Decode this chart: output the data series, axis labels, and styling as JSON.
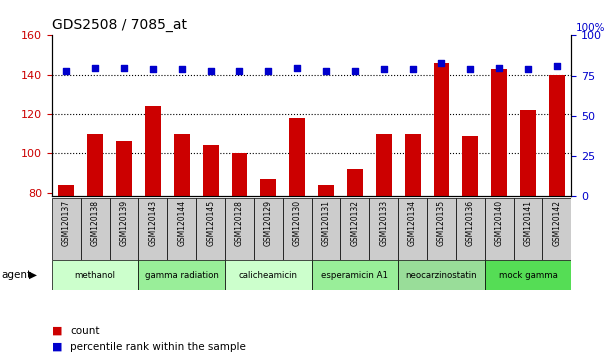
{
  "title": "GDS2508 / 7085_at",
  "samples": [
    "GSM120137",
    "GSM120138",
    "GSM120139",
    "GSM120143",
    "GSM120144",
    "GSM120145",
    "GSM120128",
    "GSM120129",
    "GSM120130",
    "GSM120131",
    "GSM120132",
    "GSM120133",
    "GSM120134",
    "GSM120135",
    "GSM120136",
    "GSM120140",
    "GSM120141",
    "GSM120142"
  ],
  "bar_values": [
    84,
    110,
    106,
    124,
    110,
    104,
    100,
    87,
    118,
    84,
    92,
    110,
    110,
    146,
    109,
    143,
    122,
    140
  ],
  "percentile_values": [
    78,
    80,
    80,
    79,
    79,
    78,
    78,
    78,
    80,
    78,
    78,
    79,
    79,
    83,
    79,
    80,
    79,
    81
  ],
  "bar_color": "#cc0000",
  "dot_color": "#0000cc",
  "ylim_left": [
    78,
    160
  ],
  "ylim_right": [
    0,
    100
  ],
  "yticks_left": [
    80,
    100,
    120,
    140,
    160
  ],
  "yticks_right": [
    0,
    25,
    50,
    75,
    100
  ],
  "agent_groups": [
    {
      "label": "methanol",
      "start": 0,
      "end": 2,
      "color": "#ccffcc"
    },
    {
      "label": "gamma radiation",
      "start": 3,
      "end": 5,
      "color": "#99ee99"
    },
    {
      "label": "calicheamicin",
      "start": 6,
      "end": 8,
      "color": "#ccffcc"
    },
    {
      "label": "esperamicin A1",
      "start": 9,
      "end": 11,
      "color": "#99ee99"
    },
    {
      "label": "neocarzinostatin",
      "start": 12,
      "end": 14,
      "color": "#99dd99"
    },
    {
      "label": "mock gamma",
      "start": 15,
      "end": 17,
      "color": "#55dd55"
    }
  ],
  "sample_bg_color": "#cccccc",
  "agent_label": "agent"
}
